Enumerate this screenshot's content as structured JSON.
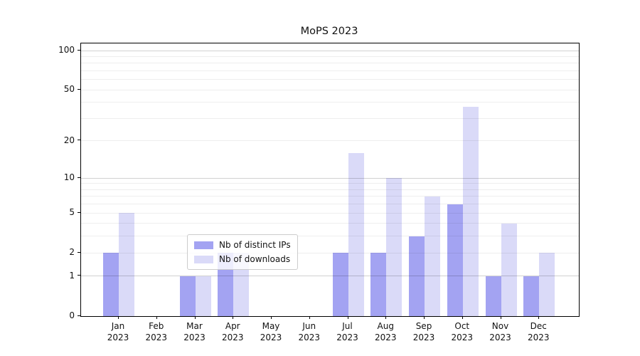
{
  "title": "MoPS 2023",
  "chart_data": {
    "type": "bar",
    "title": "MoPS 2023",
    "x_tick_month_labels": [
      "Jan",
      "Feb",
      "Mar",
      "Apr",
      "May",
      "Jun",
      "Jul",
      "Aug",
      "Sep",
      "Oct",
      "Nov",
      "Dec"
    ],
    "x_tick_year_label": "2023",
    "series": [
      {
        "name": "Nb of distinct IPs",
        "color": "#a3a3f2",
        "values": [
          2,
          0,
          1,
          2,
          0,
          0,
          2,
          2,
          3,
          6,
          1,
          1
        ]
      },
      {
        "name": "Nb of downloads",
        "color": "#dadaf8",
        "values": [
          5,
          0,
          1,
          2,
          0,
          0,
          16,
          10,
          7,
          37,
          4,
          2
        ]
      }
    ],
    "y_scale": "log10(value+1)",
    "y_tick_labels": [
      0,
      1,
      2,
      5,
      10,
      20,
      50,
      100
    ],
    "ylim": [
      0,
      113
    ],
    "grid": "horizontal minor+major, drawn over bars",
    "legend_position": "lower-center-inside",
    "colors": {
      "distinct_ips_bar": "#a3a3f2",
      "downloads_bar": "#dadaf8",
      "major_grid": "#d1d1d1",
      "minor_grid": "#eeeeee",
      "spine": "#000000"
    }
  }
}
